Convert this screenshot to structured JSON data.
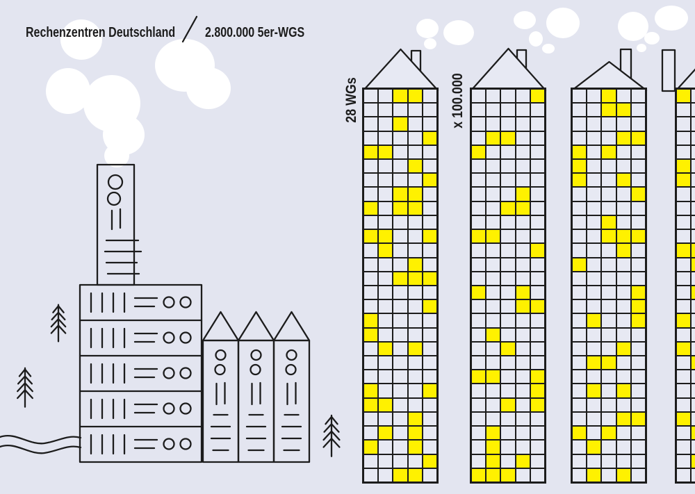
{
  "colors": {
    "background": "#E3E5F0",
    "ink": "#1C1C1C",
    "yellow": "#FFF100",
    "cell_fill": "#E7E9F3",
    "cloud": "#FFFFFF"
  },
  "header": {
    "title_left": "Rechenzentren Deutschland",
    "title_right": "2.800.000 5er-WGS"
  },
  "annotations": {
    "rows_label": "28 WGs",
    "multiplier_label": "x 100.000"
  },
  "towers": {
    "rows": 28,
    "cols": 5,
    "count": 4,
    "items": [
      {
        "name": "tower-1",
        "yellow_cells": [
          [
            1,
            3
          ],
          [
            1,
            4
          ],
          [
            3,
            3
          ],
          [
            4,
            5
          ],
          [
            5,
            1
          ],
          [
            5,
            2
          ],
          [
            6,
            4
          ],
          [
            7,
            5
          ],
          [
            8,
            3
          ],
          [
            8,
            4
          ],
          [
            9,
            1
          ],
          [
            9,
            3
          ],
          [
            9,
            4
          ],
          [
            11,
            1
          ],
          [
            11,
            2
          ],
          [
            11,
            5
          ],
          [
            12,
            2
          ],
          [
            13,
            4
          ],
          [
            14,
            3
          ],
          [
            14,
            4
          ],
          [
            14,
            5
          ],
          [
            16,
            5
          ],
          [
            17,
            1
          ],
          [
            18,
            1
          ],
          [
            19,
            2
          ],
          [
            19,
            4
          ],
          [
            22,
            1
          ],
          [
            22,
            5
          ],
          [
            23,
            1
          ],
          [
            23,
            2
          ],
          [
            24,
            4
          ],
          [
            25,
            2
          ],
          [
            25,
            4
          ],
          [
            26,
            1
          ],
          [
            26,
            4
          ],
          [
            27,
            5
          ],
          [
            28,
            3
          ],
          [
            28,
            4
          ]
        ]
      },
      {
        "name": "tower-2",
        "yellow_cells": [
          [
            1,
            5
          ],
          [
            4,
            2
          ],
          [
            4,
            3
          ],
          [
            5,
            1
          ],
          [
            8,
            4
          ],
          [
            9,
            3
          ],
          [
            9,
            4
          ],
          [
            11,
            1
          ],
          [
            11,
            2
          ],
          [
            12,
            5
          ],
          [
            15,
            1
          ],
          [
            15,
            4
          ],
          [
            16,
            4
          ],
          [
            16,
            5
          ],
          [
            18,
            2
          ],
          [
            19,
            3
          ],
          [
            21,
            1
          ],
          [
            21,
            2
          ],
          [
            21,
            5
          ],
          [
            22,
            5
          ],
          [
            23,
            3
          ],
          [
            23,
            5
          ],
          [
            25,
            2
          ],
          [
            26,
            2
          ],
          [
            27,
            2
          ],
          [
            27,
            4
          ],
          [
            28,
            1
          ],
          [
            28,
            2
          ],
          [
            28,
            3
          ]
        ]
      },
      {
        "name": "tower-3",
        "yellow_cells": [
          [
            1,
            3
          ],
          [
            2,
            3
          ],
          [
            2,
            4
          ],
          [
            4,
            4
          ],
          [
            4,
            5
          ],
          [
            5,
            1
          ],
          [
            5,
            3
          ],
          [
            6,
            1
          ],
          [
            7,
            1
          ],
          [
            7,
            4
          ],
          [
            8,
            5
          ],
          [
            10,
            3
          ],
          [
            11,
            3
          ],
          [
            11,
            4
          ],
          [
            11,
            5
          ],
          [
            12,
            4
          ],
          [
            13,
            1
          ],
          [
            15,
            5
          ],
          [
            16,
            5
          ],
          [
            17,
            2
          ],
          [
            17,
            5
          ],
          [
            19,
            4
          ],
          [
            20,
            2
          ],
          [
            20,
            3
          ],
          [
            22,
            2
          ],
          [
            22,
            4
          ],
          [
            24,
            4
          ],
          [
            24,
            5
          ],
          [
            25,
            1
          ],
          [
            25,
            3
          ],
          [
            26,
            2
          ],
          [
            28,
            2
          ],
          [
            28,
            4
          ]
        ]
      },
      {
        "name": "tower-4",
        "yellow_cells": [
          [
            1,
            1
          ],
          [
            6,
            1
          ],
          [
            7,
            1
          ],
          [
            12,
            1
          ],
          [
            12,
            2
          ],
          [
            13,
            2
          ],
          [
            15,
            2
          ],
          [
            17,
            1
          ],
          [
            19,
            1
          ],
          [
            20,
            2
          ],
          [
            24,
            1
          ],
          [
            25,
            2
          ],
          [
            27,
            2
          ]
        ]
      }
    ]
  }
}
